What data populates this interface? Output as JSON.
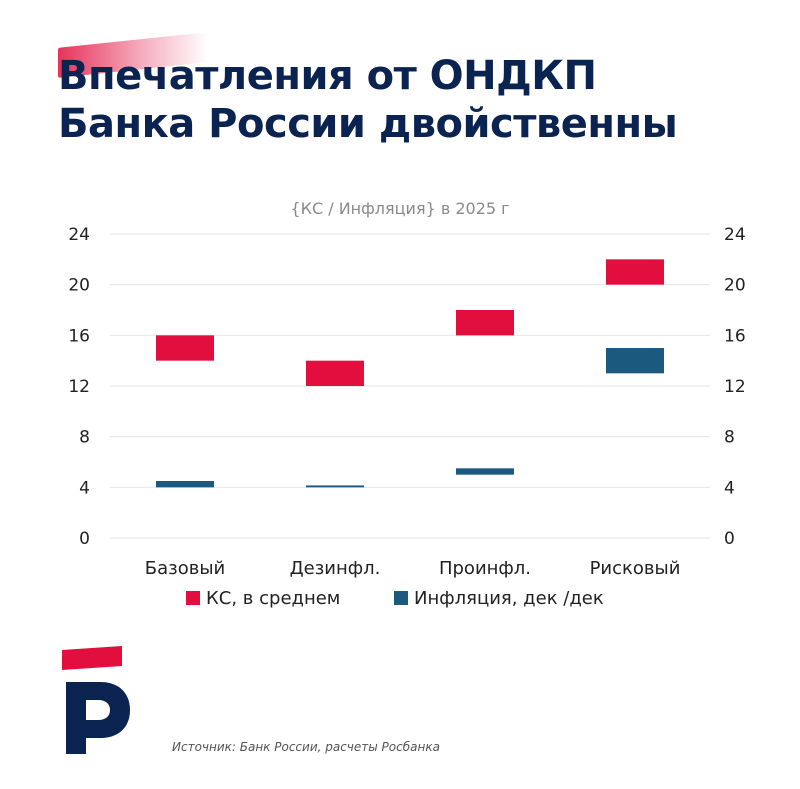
{
  "header": {
    "title_line1": "Впечатления от ОНДКП",
    "title_line2": "Банка России двойственны"
  },
  "footer": {
    "source": "Источник: Банк России, расчеты Росбанка"
  },
  "colors": {
    "title": "#0b2350",
    "accent_red": "#e20f3e",
    "series_ks": "#e20f3e",
    "series_infl": "#1b5a7e",
    "grid": "#e6e6e6",
    "text": "#222222",
    "subtitle": "#8a8a8a",
    "logo_blue": "#0b2350",
    "logo_red": "#e20f3e"
  },
  "chart_data": {
    "type": "bar",
    "subtype": "floating-range",
    "title": "{КС / Инфляция} в 2025 г",
    "categories": [
      "Базовый",
      "Дезинфл.",
      "Проинфл.",
      "Рисковый"
    ],
    "ylim": [
      0,
      24
    ],
    "yticks": [
      0,
      4,
      8,
      12,
      16,
      20,
      24
    ],
    "yticks_labels": [
      "0",
      "4",
      "8",
      "12",
      "16",
      "20",
      "24"
    ],
    "secondary_axis": true,
    "grid": true,
    "legend_position": "bottom",
    "series": [
      {
        "name": "КС, в среднем",
        "ranges": [
          [
            14,
            16
          ],
          [
            12,
            14
          ],
          [
            16,
            18
          ],
          [
            20,
            22
          ]
        ]
      },
      {
        "name": "Инфляция, дек /дек",
        "ranges": [
          [
            4,
            4.5
          ],
          [
            4.0,
            4.15
          ],
          [
            5,
            5.5
          ],
          [
            13,
            15
          ]
        ]
      }
    ]
  }
}
